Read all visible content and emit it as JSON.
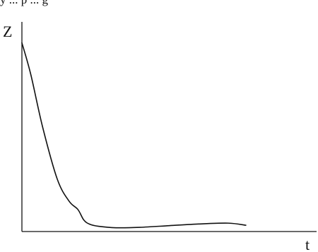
{
  "header": {
    "text": "y ... p ... g"
  },
  "chart_data": {
    "type": "line",
    "title": "",
    "xlabel": "t",
    "ylabel": "Z",
    "grid": false,
    "xlim": [
      0,
      10
    ],
    "ylim": [
      0,
      10
    ],
    "x": [
      0,
      0.3,
      0.7,
      1.2,
      1.6,
      1.9,
      2.1,
      2.3,
      2.6,
      3.2,
      4.0,
      5.0,
      6.0,
      7.0,
      7.6
    ],
    "series": [
      {
        "name": "",
        "values": [
          9.0,
          7.5,
          5.0,
          2.5,
          1.45,
          1.05,
          0.55,
          0.35,
          0.25,
          0.18,
          0.2,
          0.28,
          0.36,
          0.4,
          0.3
        ]
      }
    ]
  }
}
